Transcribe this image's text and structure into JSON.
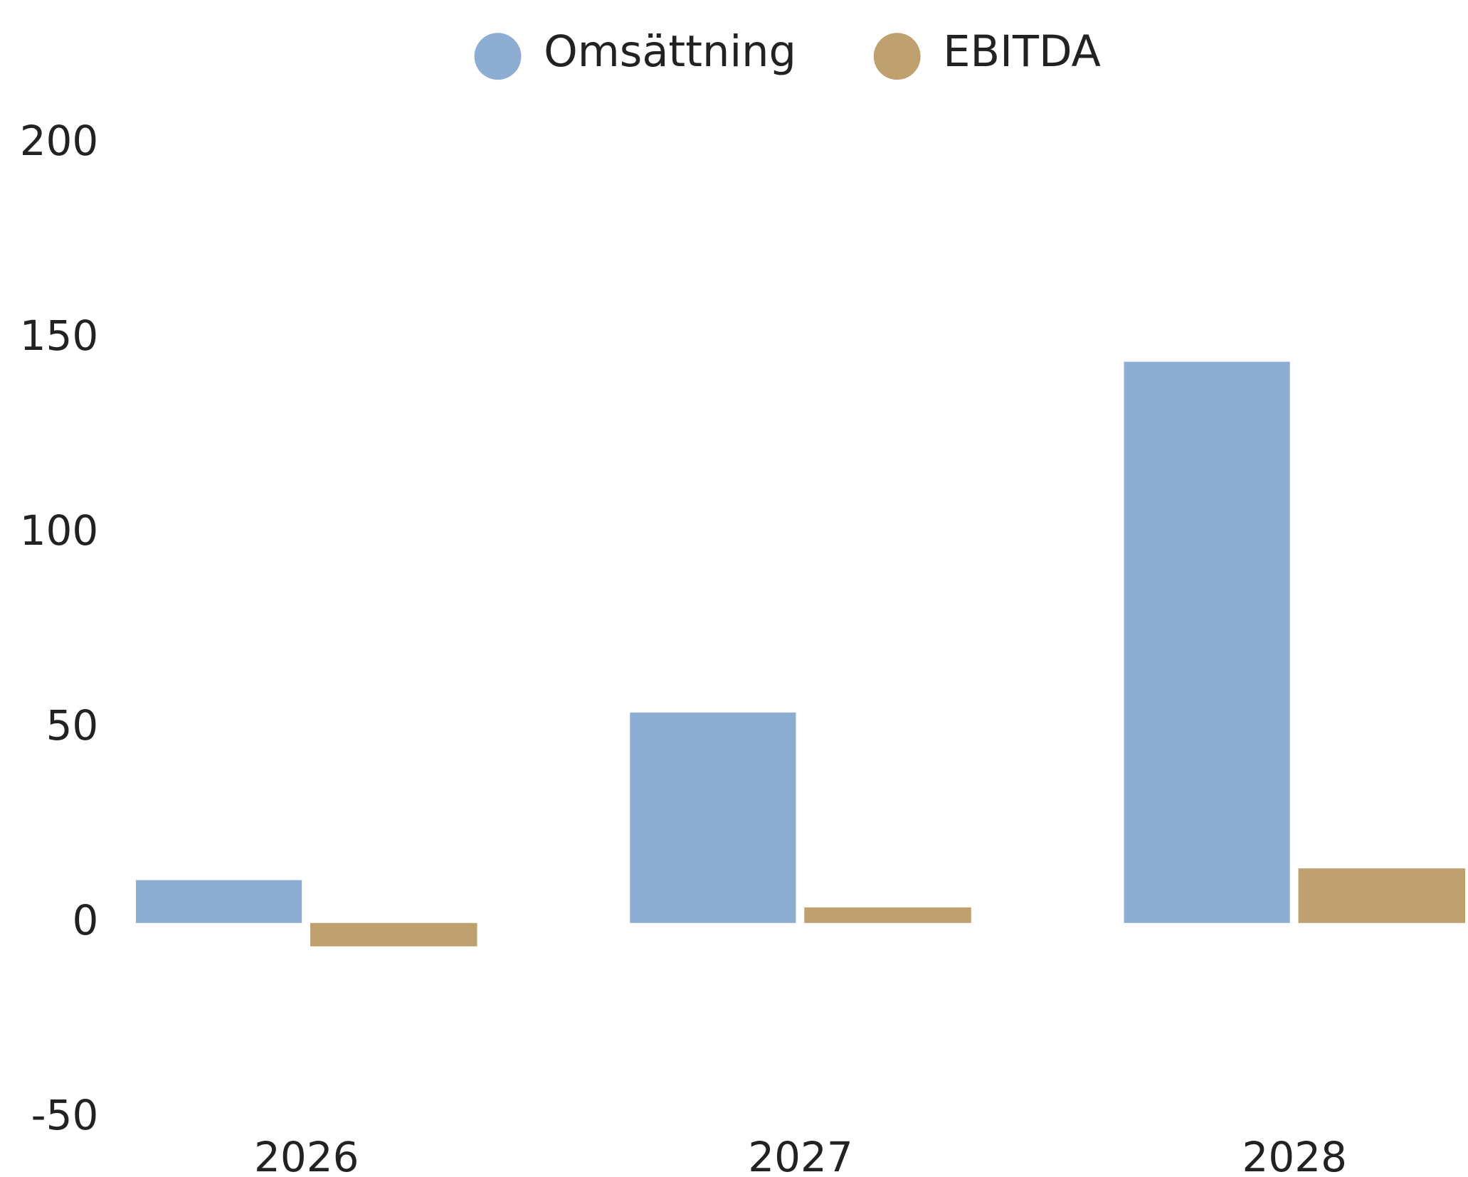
{
  "chart_data": {
    "type": "bar",
    "categories": [
      "2026",
      "2027",
      "2028"
    ],
    "series": [
      {
        "name": "Omsättning",
        "color": "#8eadd3",
        "values": [
          11,
          54,
          144
        ]
      },
      {
        "name": "EBITDA",
        "color": "#bfa06f",
        "values": [
          -6,
          4,
          14
        ]
      }
    ],
    "ylim": [
      -50,
      200
    ],
    "yticks": [
      -50,
      0,
      50,
      100,
      150,
      200
    ],
    "grid": false,
    "legend": "top"
  }
}
